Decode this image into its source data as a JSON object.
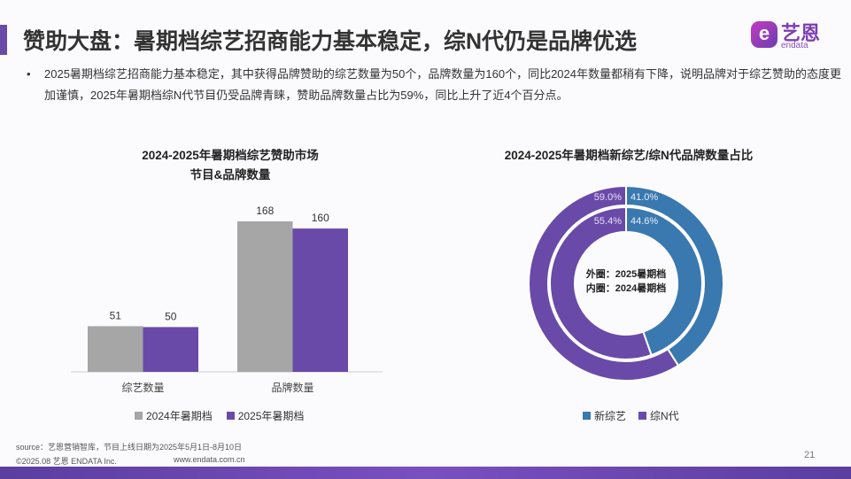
{
  "header": {
    "title": "赞助大盘：暑期档综艺招商能力基本稳定，综N代仍是品牌优选",
    "logo_cn": "艺恩",
    "logo_en": "endata"
  },
  "bullet": "2025暑期档综艺招商能力基本稳定，其中获得品牌赞助的综艺数量为50个，品牌数量为160个，同比2024年数量都稍有下降，说明品牌对于综艺赞助的态度更加谨慎，2025年暑期档综N代节目仍受品牌青睐，赞助品牌数量占比为59%，同比上升了近4个百分点。",
  "colors": {
    "accent": "#6a4aa8",
    "gray": "#a6a6a6",
    "purple": "#6a4aa8",
    "blue": "#3a78b0"
  },
  "chart_data": [
    {
      "type": "bar",
      "title": "2024-2025年暑期档综艺赞助市场",
      "subtitle": "节目&品牌数量",
      "categories": [
        "综艺数量",
        "品牌数量"
      ],
      "series": [
        {
          "name": "2024年暑期档",
          "color": "#a6a6a6",
          "values": [
            51,
            168
          ]
        },
        {
          "name": "2025年暑期档",
          "color": "#6a4aa8",
          "values": [
            50,
            160
          ]
        }
      ],
      "ylim": [
        0,
        180
      ],
      "legend": "bottom",
      "grid": false
    },
    {
      "type": "pie",
      "title": "2024-2025年暑期档新综艺/综N代品牌数量占比",
      "categories": [
        "新综艺",
        "综N代"
      ],
      "colors": [
        "#3a78b0",
        "#6a4aa8"
      ],
      "rings": [
        {
          "label": "外圈：2025暑期档",
          "values": [
            41.0,
            59.0
          ],
          "labels": [
            "41.0%",
            "59.0%"
          ]
        },
        {
          "label": "内圈：2024暑期档",
          "values": [
            44.6,
            55.4
          ],
          "labels": [
            "44.6%",
            "55.4%"
          ]
        }
      ],
      "legend": "bottom"
    }
  ],
  "footer": {
    "source": "source：艺恩营销智库，节目上线日期为2025年5月1日-8月10日",
    "copyright": "©2025.08 艺恩 ENDATA Inc.",
    "url": "www.endata.com.cn",
    "page": "21"
  }
}
